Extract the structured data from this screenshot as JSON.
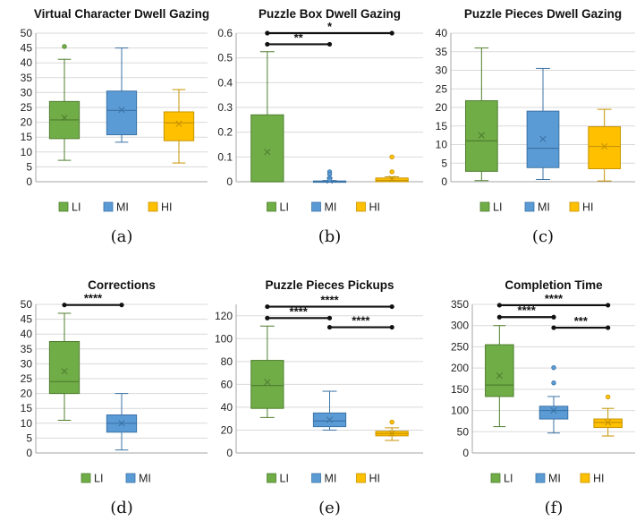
{
  "colors": {
    "LI": "#70ad47",
    "MI": "#5b9bd5",
    "HI": "#ffc000",
    "LI_stroke": "#4f7f2f",
    "MI_stroke": "#3b73a6",
    "HI_stroke": "#c79400",
    "grid": "#d9d9d9",
    "axis": "#a6a6a6"
  },
  "chart_data": [
    {
      "type": "box",
      "panel": "(a)",
      "title": "Virtual Character Dwell Gazing",
      "ylim": [
        0,
        50
      ],
      "yticks": [
        0,
        5,
        10,
        15,
        20,
        25,
        30,
        35,
        40,
        45,
        50
      ],
      "grid": true,
      "legend": [
        "LI",
        "MI",
        "HI"
      ],
      "legend_position": "bottom",
      "series": [
        {
          "name": "LI",
          "min": 7.2,
          "q1": 14.5,
          "median": 20.8,
          "q3": 27,
          "max": 41.2,
          "mean": 21.5,
          "outliers": [
            45.5
          ]
        },
        {
          "name": "MI",
          "min": 13.3,
          "q1": 15.8,
          "median": 24,
          "q3": 30.5,
          "max": 45,
          "mean": 24.2,
          "outliers": []
        },
        {
          "name": "HI",
          "min": 6.3,
          "q1": 13.8,
          "median": 19.8,
          "q3": 23.5,
          "max": 31,
          "mean": 19.5,
          "outliers": []
        }
      ],
      "significance": []
    },
    {
      "type": "box",
      "panel": "(b)",
      "title": "Puzzle Box Dwell Gazing",
      "ylim": [
        0,
        0.6
      ],
      "yticks": [
        0,
        0.1,
        0.2,
        0.3,
        0.4,
        0.5,
        0.6
      ],
      "grid": true,
      "legend": [
        "LI",
        "MI",
        "HI"
      ],
      "legend_position": "bottom",
      "series": [
        {
          "name": "LI",
          "min": 0,
          "q1": 0,
          "median": 0,
          "q3": 0.27,
          "max": 0.525,
          "mean": 0.12,
          "outliers": []
        },
        {
          "name": "MI",
          "min": 0,
          "q1": 0,
          "median": 0,
          "q3": 0.003,
          "max": 0.005,
          "mean": 0.005,
          "outliers": [
            0.04,
            0.03,
            0.015,
            0.008
          ]
        },
        {
          "name": "HI",
          "min": 0,
          "q1": 0,
          "median": 0.005,
          "q3": 0.015,
          "max": 0.02,
          "mean": 0.012,
          "outliers": [
            0.1,
            0.04
          ]
        }
      ],
      "significance": [
        {
          "from": 0,
          "to": 1,
          "y": 0.555,
          "label": "**"
        },
        {
          "from": 0,
          "to": 2,
          "y": 0.6,
          "label": "*"
        }
      ]
    },
    {
      "type": "box",
      "panel": "(c)",
      "title": "Puzzle Pieces Dwell Gazing",
      "ylim": [
        0,
        40
      ],
      "yticks": [
        0,
        5,
        10,
        15,
        20,
        25,
        30,
        35,
        40
      ],
      "grid": true,
      "legend": [
        "LI",
        "MI",
        "HI"
      ],
      "legend_position": "bottom",
      "series": [
        {
          "name": "LI",
          "min": 0.3,
          "q1": 2.8,
          "median": 11,
          "q3": 21.8,
          "max": 36,
          "mean": 12.5,
          "outliers": []
        },
        {
          "name": "MI",
          "min": 0.6,
          "q1": 3.8,
          "median": 9,
          "q3": 19,
          "max": 30.5,
          "mean": 11.5,
          "outliers": []
        },
        {
          "name": "HI",
          "min": 0.2,
          "q1": 3.5,
          "median": 9.5,
          "q3": 14.8,
          "max": 19.5,
          "mean": 9.5,
          "outliers": []
        }
      ],
      "significance": []
    },
    {
      "type": "box",
      "panel": "(d)",
      "title": "Corrections",
      "ylim": [
        0,
        50
      ],
      "yticks": [
        0,
        5,
        10,
        15,
        20,
        25,
        30,
        35,
        40,
        45,
        50
      ],
      "grid": true,
      "legend": [
        "LI",
        "MI"
      ],
      "legend_position": "bottom",
      "series": [
        {
          "name": "LI",
          "min": 11,
          "q1": 20,
          "median": 24,
          "q3": 37.5,
          "max": 47,
          "mean": 27.5,
          "outliers": []
        },
        {
          "name": "MI",
          "min": 1,
          "q1": 7,
          "median": 10,
          "q3": 12.8,
          "max": 20,
          "mean": 10,
          "outliers": []
        }
      ],
      "significance": [
        {
          "from": 0,
          "to": 1,
          "y": 49.8,
          "label": "****"
        }
      ]
    },
    {
      "type": "box",
      "panel": "(e)",
      "title": "Puzzle Pieces Pickups",
      "ylim": [
        0,
        130
      ],
      "yticks": [
        0,
        20,
        40,
        60,
        80,
        100,
        120
      ],
      "grid": true,
      "legend": [
        "LI",
        "MI",
        "HI"
      ],
      "legend_position": "bottom",
      "series": [
        {
          "name": "LI",
          "min": 31,
          "q1": 39,
          "median": 59,
          "q3": 81,
          "max": 111,
          "mean": 62,
          "outliers": []
        },
        {
          "name": "MI",
          "min": 20,
          "q1": 23,
          "median": 28,
          "q3": 35,
          "max": 54,
          "mean": 29,
          "outliers": []
        },
        {
          "name": "HI",
          "min": 11,
          "q1": 15,
          "median": 17,
          "q3": 19,
          "max": 22,
          "mean": 17,
          "outliers": [
            27
          ]
        }
      ],
      "significance": [
        {
          "from": 0,
          "to": 2,
          "y": 128,
          "label": "****"
        },
        {
          "from": 0,
          "to": 1,
          "y": 118,
          "label": "****"
        },
        {
          "from": 1,
          "to": 2,
          "y": 110,
          "label": "****"
        }
      ]
    },
    {
      "type": "box",
      "panel": "(f)",
      "title": "Completion Time",
      "ylim": [
        0,
        350
      ],
      "yticks": [
        0,
        50,
        100,
        150,
        200,
        250,
        300,
        350
      ],
      "grid": true,
      "legend": [
        "LI",
        "MI",
        "HI"
      ],
      "legend_position": "bottom",
      "series": [
        {
          "name": "LI",
          "min": 62,
          "q1": 133,
          "median": 160,
          "q3": 255,
          "max": 300,
          "mean": 182,
          "outliers": []
        },
        {
          "name": "MI",
          "min": 47,
          "q1": 80,
          "median": 100,
          "q3": 110,
          "max": 133,
          "mean": 100,
          "outliers": [
            201,
            165
          ]
        },
        {
          "name": "HI",
          "min": 40,
          "q1": 60,
          "median": 72,
          "q3": 80,
          "max": 105,
          "mean": 72,
          "outliers": [
            132
          ]
        }
      ],
      "significance": [
        {
          "from": 0,
          "to": 2,
          "y": 348,
          "label": "****"
        },
        {
          "from": 0,
          "to": 1,
          "y": 320,
          "label": "****"
        },
        {
          "from": 1,
          "to": 2,
          "y": 295,
          "label": "***"
        }
      ]
    }
  ]
}
